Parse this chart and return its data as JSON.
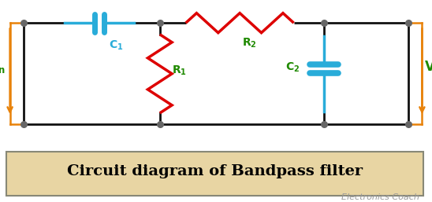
{
  "bg_color": "#ffffff",
  "caption_bg": "#e8d5a3",
  "caption_text": "Circuit diagram of Bandpass filter",
  "caption_color": "#000000",
  "watermark": "Electronics Coach",
  "wire_color": "#111111",
  "orange_color": "#e8820a",
  "cyan_color": "#29acd9",
  "red_color": "#dd0000",
  "green_color": "#1f8a00",
  "node_color": "#666666",
  "caption_fontsize": 14,
  "watermark_fontsize": 8
}
